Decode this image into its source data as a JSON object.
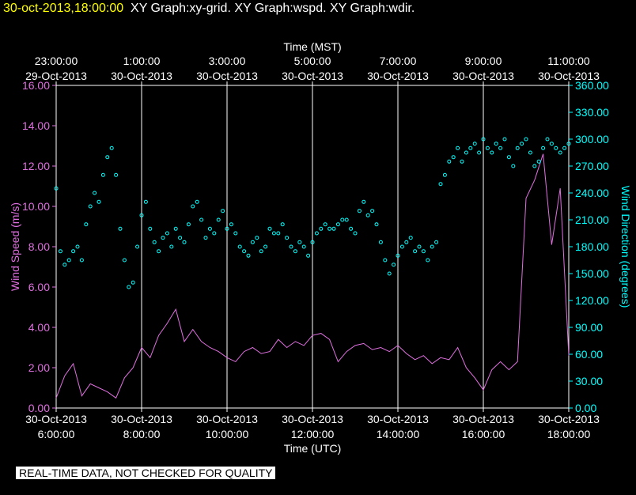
{
  "header": {
    "timestamp": "30-oct-2013,18:00:00",
    "graphs": "XY Graph:xy-grid.  XY Graph:wspd.  XY Graph:wdir."
  },
  "footer_note": "REAL-TIME DATA, NOT CHECKED FOR QUALITY",
  "colors": {
    "background": "#000000",
    "grid": "#ffffff",
    "wspd": "#e070e0",
    "wdir": "#00ffff",
    "timestamp": "#ffff00"
  },
  "chart_data": {
    "type": "line",
    "top_axis": {
      "label": "Time (MST)",
      "ticks": [
        {
          "time": "23:00:00",
          "date": "29-Oct-2013"
        },
        {
          "time": "1:00:00",
          "date": "30-Oct-2013"
        },
        {
          "time": "3:00:00",
          "date": "30-Oct-2013"
        },
        {
          "time": "5:00:00",
          "date": "30-Oct-2013"
        },
        {
          "time": "7:00:00",
          "date": "30-Oct-2013"
        },
        {
          "time": "9:00:00",
          "date": "30-Oct-2013"
        },
        {
          "time": "11:00:00",
          "date": "30-Oct-2013"
        }
      ]
    },
    "bottom_axis": {
      "label": "Time (UTC)",
      "range_hours": [
        6,
        18
      ],
      "ticks": [
        {
          "hour": 6,
          "date": "30-Oct-2013",
          "time": "6:00:00"
        },
        {
          "hour": 8,
          "date": "30-Oct-2013",
          "time": "8:00:00"
        },
        {
          "hour": 10,
          "date": "30-Oct-2013",
          "time": "10:00:00"
        },
        {
          "hour": 12,
          "date": "30-Oct-2013",
          "time": "12:00:00"
        },
        {
          "hour": 14,
          "date": "30-Oct-2013",
          "time": "14:00:00"
        },
        {
          "hour": 16,
          "date": "30-Oct-2013",
          "time": "16:00:00"
        },
        {
          "hour": 18,
          "date": "30-Oct-2013",
          "time": "18:00:00"
        }
      ]
    },
    "left_axis": {
      "label": "Wind Speed (m/s)",
      "ylim": [
        0,
        16
      ],
      "ticks": [
        "0.00",
        "2.00",
        "4.00",
        "6.00",
        "8.00",
        "10.00",
        "12.00",
        "14.00",
        "16.00"
      ]
    },
    "right_axis": {
      "label": "Wind Direction (degrees)",
      "ylim": [
        0,
        360
      ],
      "ticks": [
        "0.00",
        "30.00",
        "60.00",
        "90.00",
        "120.00",
        "150.00",
        "180.00",
        "210.00",
        "240.00",
        "270.00",
        "300.00",
        "330.00",
        "360.00"
      ]
    },
    "series": [
      {
        "name": "Wind Speed",
        "type": "line",
        "axis": "left",
        "x_hours": [
          6.0,
          6.2,
          6.4,
          6.6,
          6.8,
          7.0,
          7.2,
          7.4,
          7.6,
          7.8,
          8.0,
          8.2,
          8.4,
          8.6,
          8.8,
          9.0,
          9.2,
          9.4,
          9.6,
          9.8,
          10.0,
          10.2,
          10.4,
          10.6,
          10.8,
          11.0,
          11.2,
          11.4,
          11.6,
          11.8,
          12.0,
          12.2,
          12.4,
          12.6,
          12.8,
          13.0,
          13.2,
          13.4,
          13.6,
          13.8,
          14.0,
          14.2,
          14.4,
          14.6,
          14.8,
          15.0,
          15.2,
          15.4,
          15.6,
          15.8,
          16.0,
          16.2,
          16.4,
          16.6,
          16.8,
          17.0,
          17.2,
          17.4,
          17.6,
          17.8,
          18.0
        ],
        "values": [
          0.5,
          1.6,
          2.2,
          0.6,
          1.2,
          1.0,
          0.8,
          0.5,
          1.5,
          2.0,
          3.0,
          2.5,
          3.6,
          4.2,
          4.9,
          3.3,
          3.9,
          3.3,
          3.0,
          2.8,
          2.5,
          2.3,
          2.8,
          3.0,
          2.7,
          2.8,
          3.4,
          3.0,
          3.3,
          3.1,
          3.6,
          3.7,
          3.4,
          2.3,
          2.8,
          3.1,
          3.2,
          2.9,
          3.0,
          2.8,
          3.1,
          2.7,
          2.4,
          2.6,
          2.2,
          2.5,
          2.4,
          3.0,
          2.0,
          1.5,
          0.9,
          1.9,
          2.3,
          1.9,
          2.3,
          10.4,
          11.3,
          12.6,
          8.1,
          10.9,
          2.6
        ]
      },
      {
        "name": "Wind Direction",
        "type": "scatter",
        "axis": "right",
        "x_hours": [
          6.0,
          6.1,
          6.2,
          6.3,
          6.4,
          6.5,
          6.6,
          6.7,
          6.8,
          6.9,
          7.0,
          7.1,
          7.2,
          7.3,
          7.4,
          7.5,
          7.6,
          7.7,
          7.8,
          7.9,
          8.0,
          8.1,
          8.2,
          8.3,
          8.4,
          8.5,
          8.6,
          8.7,
          8.8,
          8.9,
          9.0,
          9.1,
          9.2,
          9.3,
          9.4,
          9.5,
          9.6,
          9.7,
          9.8,
          9.9,
          10.0,
          10.1,
          10.2,
          10.3,
          10.4,
          10.5,
          10.6,
          10.7,
          10.8,
          10.9,
          11.0,
          11.1,
          11.2,
          11.3,
          11.4,
          11.5,
          11.6,
          11.7,
          11.8,
          11.9,
          12.0,
          12.1,
          12.2,
          12.3,
          12.4,
          12.5,
          12.6,
          12.7,
          12.8,
          12.9,
          13.0,
          13.1,
          13.2,
          13.3,
          13.4,
          13.5,
          13.6,
          13.7,
          13.8,
          13.9,
          14.0,
          14.1,
          14.2,
          14.3,
          14.4,
          14.5,
          14.6,
          14.7,
          14.8,
          14.9,
          15.0,
          15.1,
          15.2,
          15.3,
          15.4,
          15.5,
          15.6,
          15.7,
          15.8,
          15.9,
          16.0,
          16.1,
          16.2,
          16.3,
          16.4,
          16.5,
          16.6,
          16.7,
          16.8,
          16.9,
          17.0,
          17.1,
          17.2,
          17.3,
          17.4,
          17.5,
          17.6,
          17.7,
          17.8,
          17.9,
          18.0
        ],
        "values": [
          245,
          175,
          160,
          165,
          175,
          180,
          165,
          205,
          225,
          240,
          230,
          260,
          280,
          290,
          260,
          200,
          165,
          135,
          140,
          180,
          215,
          230,
          200,
          185,
          175,
          190,
          195,
          180,
          200,
          190,
          185,
          205,
          225,
          230,
          210,
          190,
          200,
          195,
          210,
          220,
          200,
          205,
          195,
          180,
          175,
          170,
          185,
          190,
          175,
          180,
          200,
          195,
          195,
          205,
          190,
          180,
          175,
          185,
          180,
          170,
          185,
          195,
          200,
          205,
          200,
          200,
          205,
          210,
          210,
          200,
          195,
          220,
          230,
          215,
          220,
          205,
          185,
          165,
          150,
          160,
          170,
          180,
          185,
          190,
          175,
          180,
          175,
          165,
          180,
          185,
          250,
          260,
          275,
          280,
          290,
          275,
          285,
          290,
          295,
          285,
          300,
          290,
          285,
          295,
          290,
          300,
          280,
          270,
          290,
          295,
          300,
          285,
          270,
          275,
          290,
          300,
          295,
          290,
          285,
          290,
          295
        ]
      }
    ]
  }
}
